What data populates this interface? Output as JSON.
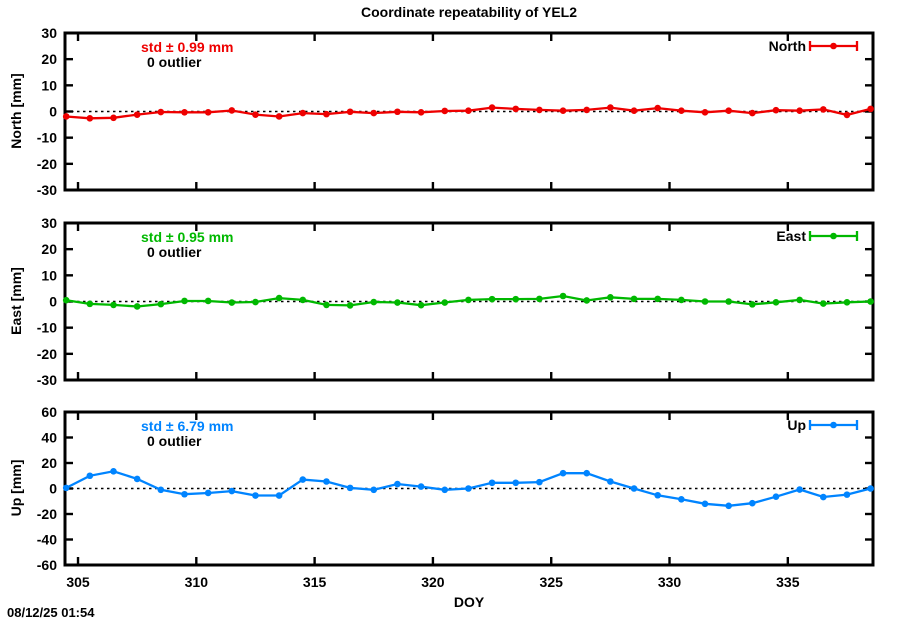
{
  "title": "Coordinate repeatability of YEL2",
  "timestamp": "08/12/25 01:54",
  "colors": {
    "north": "#ee0000",
    "east": "#00b800",
    "up": "#0084ff",
    "axis": "#000000",
    "background": "#ffffff"
  },
  "x_axis": {
    "label": "DOY",
    "min": 304.45,
    "max": 338.6,
    "ticks": [
      305,
      310,
      315,
      320,
      325,
      330,
      335
    ]
  },
  "chart_data": [
    {
      "type": "line",
      "name": "North",
      "legend_label": "North",
      "ylabel": "North [mm]",
      "std_label": "std ± 0.99 mm",
      "outlier_label": "0 outlier",
      "color_key": "north",
      "ylim": [
        -30,
        30
      ],
      "yticks": [
        30,
        20,
        10,
        0,
        -10,
        -20,
        -30
      ],
      "zero_line": true,
      "x": [
        304.5,
        305.5,
        306.5,
        307.5,
        308.5,
        309.5,
        310.5,
        311.5,
        312.5,
        313.5,
        314.5,
        315.5,
        316.5,
        317.5,
        318.5,
        319.5,
        320.5,
        321.5,
        322.5,
        323.5,
        324.5,
        325.5,
        326.5,
        327.5,
        328.5,
        329.5,
        330.5,
        331.5,
        332.5,
        333.5,
        334.5,
        335.5,
        336.5,
        337.5,
        338.5
      ],
      "y": [
        -1.9,
        -2.6,
        -2.4,
        -1.2,
        -0.2,
        -0.3,
        -0.3,
        0.4,
        -1.2,
        -1.9,
        -0.6,
        -1.0,
        -0.1,
        -0.6,
        -0.1,
        -0.3,
        0.2,
        0.3,
        1.5,
        1.0,
        0.6,
        0.3,
        0.6,
        1.5,
        0.3,
        1.3,
        0.3,
        -0.3,
        0.3,
        -0.6,
        0.5,
        0.3,
        0.8,
        -1.3,
        1.0
      ]
    },
    {
      "type": "line",
      "name": "East",
      "legend_label": "East",
      "ylabel": "East [mm]",
      "std_label": "std ± 0.95 mm",
      "outlier_label": "0 outlier",
      "color_key": "east",
      "ylim": [
        -30,
        30
      ],
      "yticks": [
        30,
        20,
        10,
        0,
        -10,
        -20,
        -30
      ],
      "zero_line": true,
      "x": [
        304.5,
        305.5,
        306.5,
        307.5,
        308.5,
        309.5,
        310.5,
        311.5,
        312.5,
        313.5,
        314.5,
        315.5,
        316.5,
        317.5,
        318.5,
        319.5,
        320.5,
        321.5,
        322.5,
        323.5,
        324.5,
        325.5,
        326.5,
        327.5,
        328.5,
        329.5,
        330.5,
        331.5,
        332.5,
        333.5,
        334.5,
        335.5,
        336.5,
        337.5,
        338.5
      ],
      "y": [
        0.5,
        -0.9,
        -1.3,
        -1.9,
        -1.0,
        0.2,
        0.2,
        -0.4,
        -0.2,
        1.3,
        0.6,
        -1.3,
        -1.5,
        -0.2,
        -0.4,
        -1.4,
        -0.4,
        0.6,
        0.9,
        0.9,
        1.0,
        2.1,
        0.4,
        1.6,
        1.0,
        1.0,
        0.6,
        0.0,
        0.0,
        -1.1,
        -0.3,
        0.6,
        -0.8,
        -0.3,
        0.0
      ]
    },
    {
      "type": "line",
      "name": "Up",
      "legend_label": "Up",
      "ylabel": "Up [mm]",
      "std_label": "std ± 6.79 mm",
      "outlier_label": "0 outlier",
      "color_key": "up",
      "ylim": [
        -60,
        60
      ],
      "yticks": [
        60,
        40,
        20,
        0,
        -20,
        -40,
        -60
      ],
      "zero_line": true,
      "x": [
        304.5,
        305.5,
        306.5,
        307.5,
        308.5,
        309.5,
        310.5,
        311.5,
        312.5,
        313.5,
        314.5,
        315.5,
        316.5,
        317.5,
        318.5,
        319.5,
        320.5,
        321.5,
        322.5,
        323.5,
        324.5,
        325.5,
        326.5,
        327.5,
        328.5,
        329.5,
        330.5,
        331.5,
        332.5,
        333.5,
        334.5,
        335.5,
        336.5,
        337.5,
        338.5
      ],
      "y": [
        0.5,
        10.0,
        13.5,
        7.5,
        -1.0,
        -4.5,
        -3.5,
        -2.0,
        -5.5,
        -5.5,
        7.0,
        5.5,
        0.5,
        -1.0,
        3.5,
        1.5,
        -1.0,
        0.0,
        4.5,
        4.5,
        5.0,
        12.0,
        12.0,
        5.5,
        0.0,
        -5.3,
        -8.5,
        -12.0,
        -13.6,
        -11.5,
        -6.4,
        -0.8,
        -6.7,
        -4.8,
        0.0
      ]
    }
  ]
}
